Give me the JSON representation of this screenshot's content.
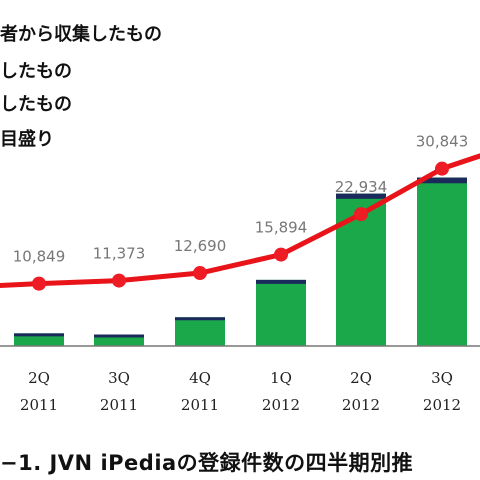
{
  "legend": {
    "items": [
      "者から収集したもの",
      "したもの",
      "したもの",
      "目盛り"
    ]
  },
  "caption": "−1. JVN iPediaの登録件数の四半期別推",
  "chart_data": {
    "type": "bar",
    "categories": [
      [
        "",
        ""
      ],
      [
        "2Q",
        "2011"
      ],
      [
        "3Q",
        "2011"
      ],
      [
        "4Q",
        "2011"
      ],
      [
        "1Q",
        "2012"
      ],
      [
        "2Q",
        "2012"
      ],
      [
        "3Q",
        "2012"
      ],
      [
        "",
        ""
      ]
    ],
    "bars": [
      null,
      2200,
      2000,
      5000,
      11500,
      26500,
      29300,
      null
    ],
    "bar_top_band": [
      null,
      500,
      500,
      400,
      700,
      900,
      1000,
      null
    ],
    "line_values": [
      10200,
      10849,
      11373,
      12690,
      15894,
      22934,
      30843,
      35500
    ],
    "line_labels": [
      "",
      "10,849",
      "11,373",
      "12,690",
      "15,894",
      "22,934",
      "30,843",
      ""
    ],
    "colors": {
      "bar": "#1aa84a",
      "bar_top": "#1a2a5a",
      "line": "#e8141a",
      "marker": "#ee1c24",
      "label": "#777777",
      "axis": "#777777"
    }
  }
}
